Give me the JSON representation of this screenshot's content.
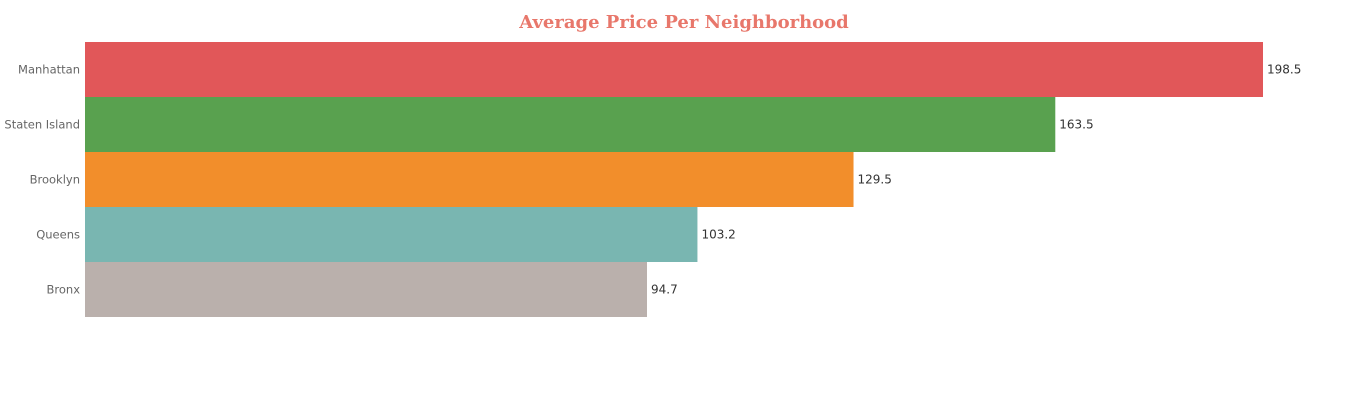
{
  "chart_data": {
    "type": "bar",
    "orientation": "horizontal",
    "title": "Average Price Per Neighborhood",
    "xlabel": "",
    "ylabel": "",
    "categories": [
      "Manhattan",
      "Staten Island",
      "Brooklyn",
      "Queens",
      "Bronx"
    ],
    "values": [
      198.5,
      163.5,
      129.5,
      103.2,
      94.7
    ],
    "value_labels": [
      "198.5",
      "163.5",
      "129.5",
      "103.2",
      "94.7"
    ],
    "xlim": [
      0,
      198.5
    ],
    "grid": false,
    "legend": "none",
    "colors": [
      "#e15759",
      "#59a14f",
      "#f28e2b",
      "#79b6b1",
      "#bab0ac"
    ],
    "title_color": "#e8776b"
  }
}
